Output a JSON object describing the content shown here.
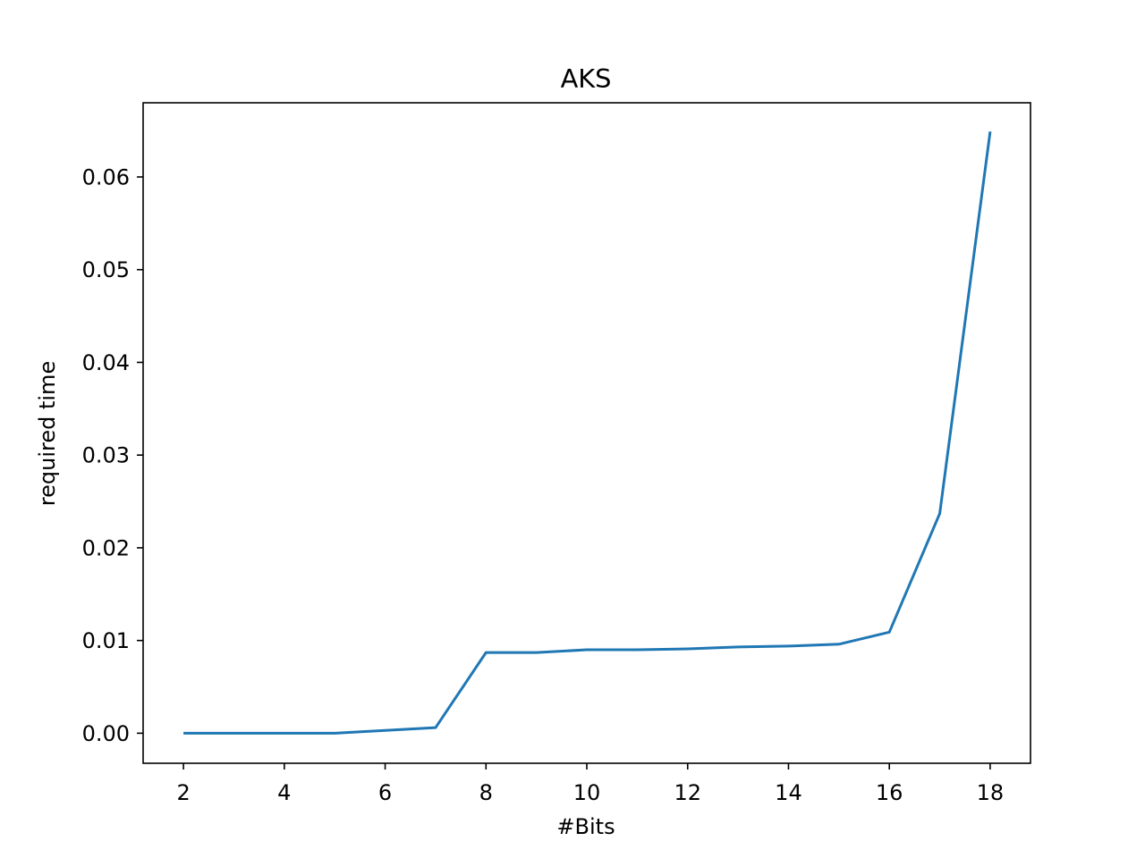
{
  "chart_data": {
    "type": "line",
    "title": "AKS",
    "xlabel": "#Bits",
    "ylabel": "required time",
    "xlim": [
      1.2,
      18.8
    ],
    "ylim": [
      -0.00324,
      0.068
    ],
    "xticks": [
      2,
      4,
      6,
      8,
      10,
      12,
      14,
      16,
      18
    ],
    "xtick_labels": [
      "2",
      "4",
      "6",
      "8",
      "10",
      "12",
      "14",
      "16",
      "18"
    ],
    "yticks": [
      0.0,
      0.01,
      0.02,
      0.03,
      0.04,
      0.05,
      0.06
    ],
    "ytick_labels": [
      "0.00",
      "0.01",
      "0.02",
      "0.03",
      "0.04",
      "0.05",
      "0.06"
    ],
    "grid": false,
    "series": [
      {
        "color": "#1f77b4",
        "x": [
          2,
          3,
          4,
          5,
          6,
          7,
          8,
          9,
          10,
          11,
          12,
          13,
          14,
          15,
          16,
          17,
          18
        ],
        "y": [
          0.0,
          0.0,
          0.0,
          0.0,
          0.0003,
          0.0006,
          0.0087,
          0.0087,
          0.009,
          0.009,
          0.0091,
          0.0093,
          0.0094,
          0.0096,
          0.0109,
          0.0237,
          0.0649
        ]
      }
    ]
  }
}
